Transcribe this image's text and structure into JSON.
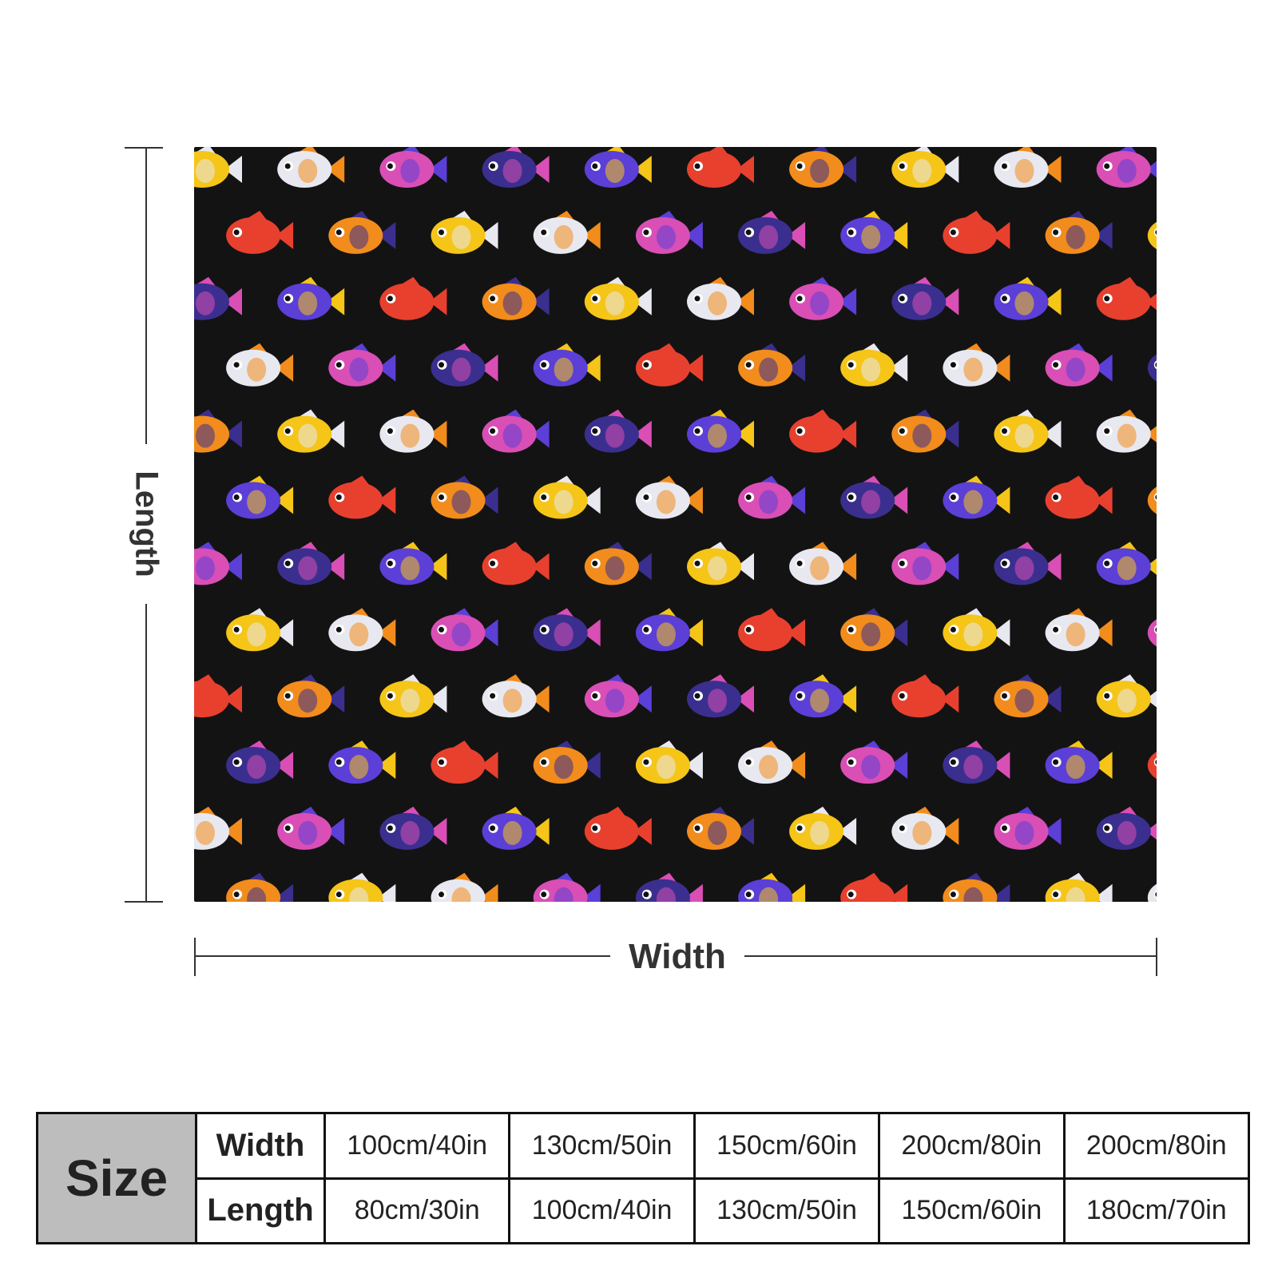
{
  "dimension_labels": {
    "length": "Length",
    "width": "Width"
  },
  "blanket_pattern": {
    "background_color": "#131313",
    "motif": "tropical-fish-pattern",
    "fish_colors": [
      "#f5c518",
      "#5b3fd6",
      "#e8e8f0",
      "#e8402e",
      "#d94fb5",
      "#f28c1c",
      "#3a2f8f"
    ]
  },
  "size_table": {
    "size_label": "Size",
    "rows": [
      {
        "label": "Width",
        "values": [
          "100cm/40in",
          "130cm/50in",
          "150cm/60in",
          "200cm/80in",
          "200cm/80in"
        ]
      },
      {
        "label": "Length",
        "values": [
          "80cm/30in",
          "100cm/40in",
          "130cm/50in",
          "150cm/60in",
          "180cm/70in"
        ]
      }
    ]
  }
}
